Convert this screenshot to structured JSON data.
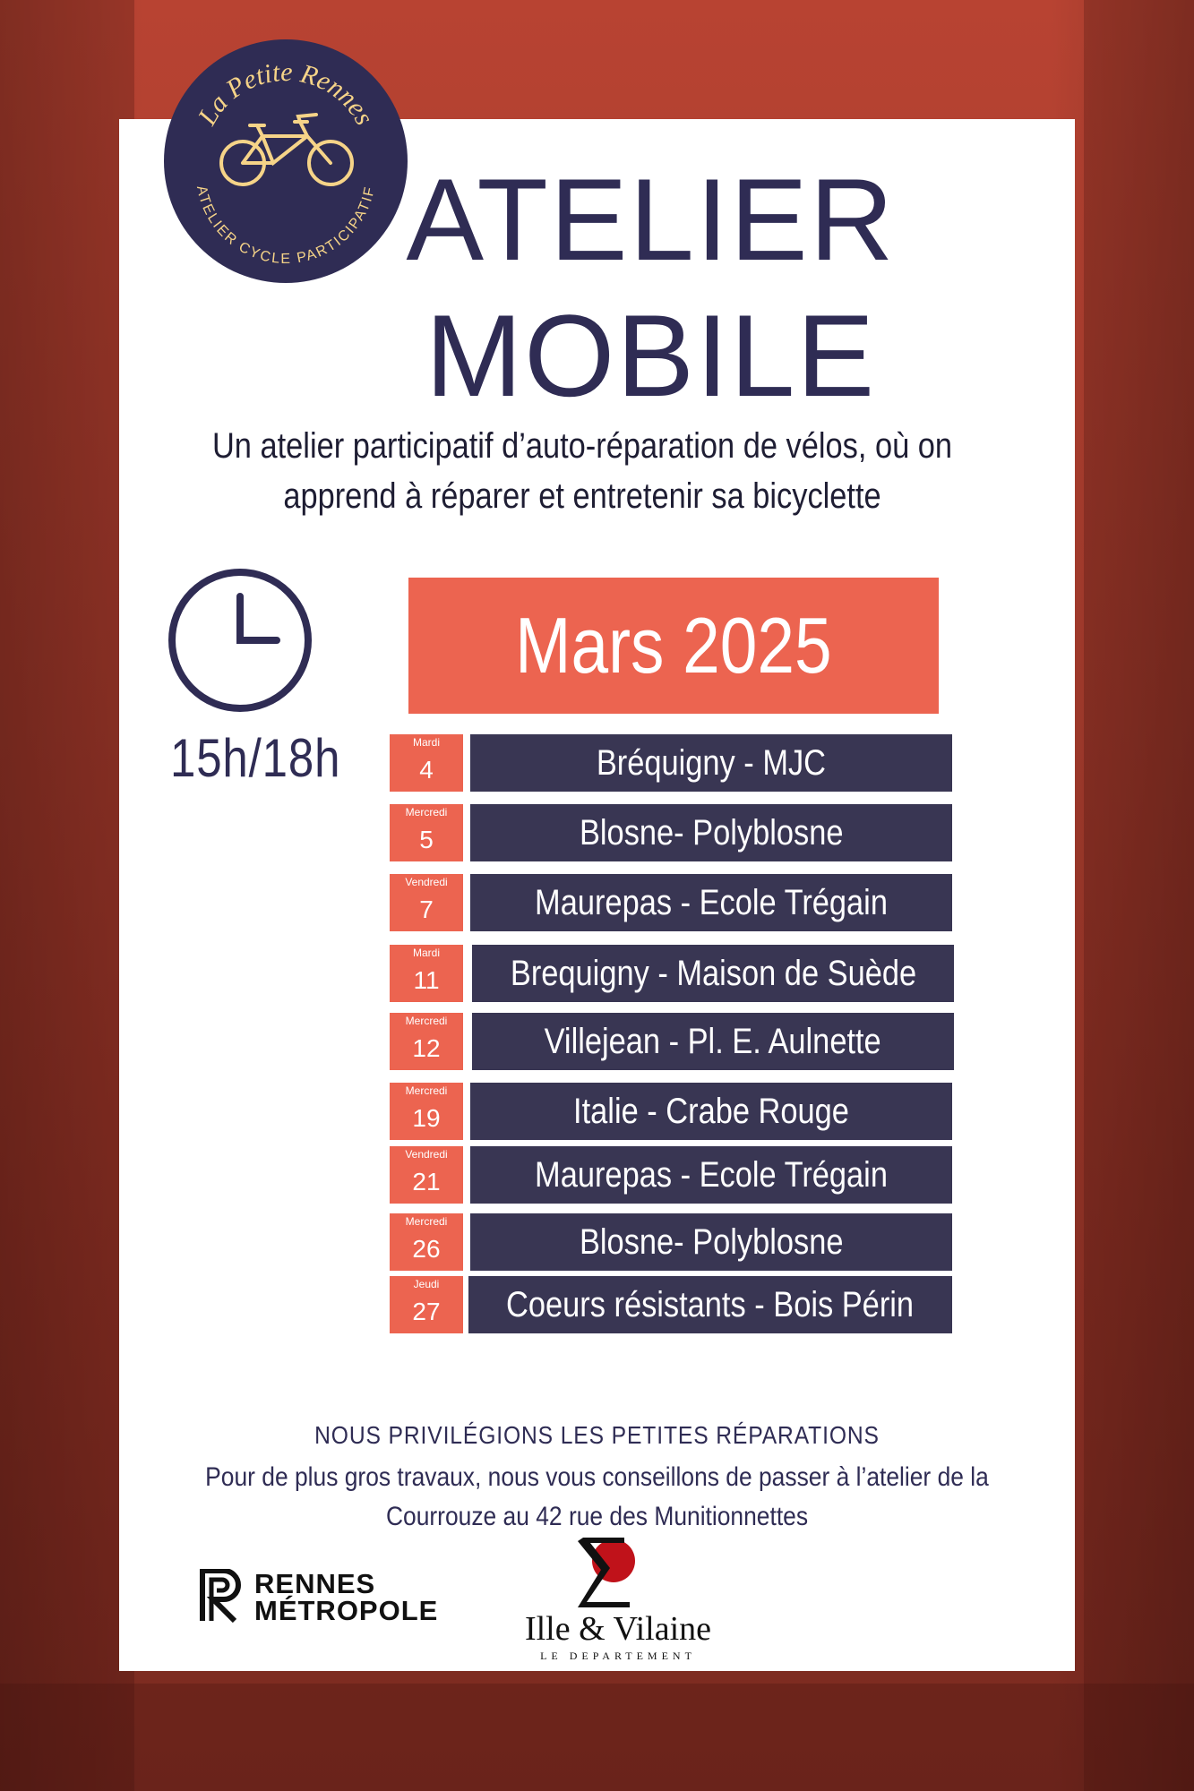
{
  "logo": {
    "name": "La Petite Rennes",
    "tagline": "ATELIER CYCLE PARTICIPATIF",
    "icon": "tandem-bike-icon"
  },
  "title_line1": "ATELIER",
  "title_line2": "MOBILE",
  "subtitle_line1": "Un atelier participatif d’auto-réparation de vélos, où on",
  "subtitle_line2": "apprend à réparer et entretenir sa bicyclette",
  "hours": "15h/18h",
  "month": "Mars 2025",
  "schedule": [
    {
      "weekday": "Mardi",
      "day": "4",
      "place": "Bréquigny - MJC"
    },
    {
      "weekday": "Mercredi",
      "day": "5",
      "place": "Blosne- Polyblosne"
    },
    {
      "weekday": "Vendredi",
      "day": "7",
      "place": "Maurepas -  Ecole Trégain"
    },
    {
      "weekday": "Mardi",
      "day": "11",
      "place": "Brequigny - Maison de Suède"
    },
    {
      "weekday": "Mercredi",
      "day": "12",
      "place": "Villejean - Pl. E. Aulnette"
    },
    {
      "weekday": "Mercredi",
      "day": "19",
      "place": "Italie - Crabe Rouge"
    },
    {
      "weekday": "Vendredi",
      "day": "21",
      "place": "Maurepas -  Ecole Trégain"
    },
    {
      "weekday": "Mercredi",
      "day": "26",
      "place": "Blosne- Polyblosne"
    },
    {
      "weekday": "Jeudi",
      "day": "27",
      "place": "Coeurs résistants - Bois Périn"
    }
  ],
  "footer": {
    "headline": "NOUS PRIVILÉGIONS LES PETITES RÉPARATIONS",
    "line2": "Pour de plus gros travaux, nous vous conseillons de passer à l’atelier de la",
    "line3": "Courrouze au 42 rue des Munitionnettes"
  },
  "partners": {
    "rennes_line1": "RENNES",
    "rennes_line2": "MÉTROPOLE",
    "ille_name": "Ille & Vilaine",
    "ille_sub": "LE DEPARTEMENT"
  },
  "colors": {
    "navy": "#2f2c54",
    "row_navy": "#393653",
    "coral": "#ec6450",
    "background": "#a23a2c"
  }
}
